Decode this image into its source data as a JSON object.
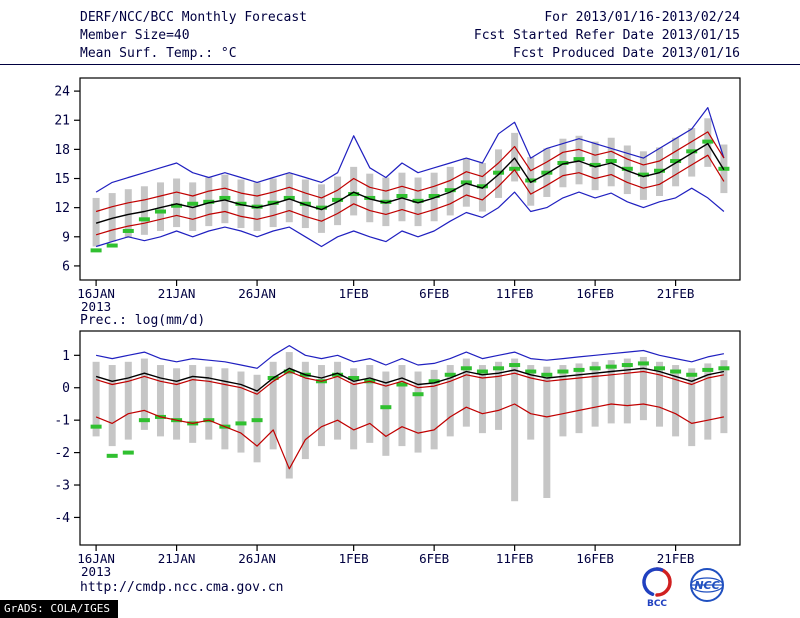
{
  "header": {
    "title": "DERF/NCC/BCC Monthly Forecast",
    "member_size": "Member Size=40",
    "temp_label": "Mean Surf. Temp.: °C",
    "for_range": "For 2013/01/16-2013/02/24",
    "refer_date": "Fcst Started Refer Date 2013/01/15",
    "produced_date": "Fcst Produced Date 2013/01/16"
  },
  "footer": {
    "url": "http://cmdp.ncc.cma.gov.cn",
    "grads_credit": "GrADS: COLA/IGES",
    "logo_bcc": "BCC",
    "logo_ncc": "NCC"
  },
  "colors": {
    "text": "#000040",
    "line_blue": "#2020c0",
    "line_red": "#c00000",
    "line_black": "#000000",
    "marker_green": "#30c030",
    "bar_gray": "#c6c6c6"
  },
  "chart_data": [
    {
      "type": "line",
      "title": "Mean Surf. Temp.: °C",
      "xlabel": "",
      "ylabel": "°C",
      "ylim": [
        4.55,
        25.35
      ],
      "yticks": [
        6,
        9,
        12,
        15,
        18,
        21,
        24
      ],
      "n_points": 40,
      "x_tick_indices": [
        0,
        5,
        10,
        16,
        21,
        26,
        31,
        36
      ],
      "x_tick_labels": [
        "16JAN",
        "21JAN",
        "26JAN",
        "1FEB",
        "6FEB",
        "11FEB",
        "16FEB",
        "21FEB"
      ],
      "x_year_label": "2013",
      "grid": false,
      "series": [
        {
          "name": "ensemble-max",
          "color": "#2020c0",
          "width": 1.2,
          "values": [
            13.6,
            14.6,
            15.1,
            15.6,
            16.1,
            16.6,
            15.6,
            15.1,
            15.6,
            15.1,
            14.6,
            15.1,
            15.6,
            15.1,
            14.6,
            15.6,
            19.4,
            16.1,
            15.1,
            16.6,
            15.6,
            16.1,
            16.6,
            17.1,
            16.6,
            19.6,
            20.8,
            17.1,
            18.1,
            18.6,
            19.1,
            18.6,
            18.1,
            17.6,
            17.1,
            18.1,
            19.1,
            20.1,
            22.3,
            17.1
          ]
        },
        {
          "name": "upper-quartile",
          "color": "#c00000",
          "width": 1.2,
          "values": [
            11.6,
            12.1,
            12.5,
            12.8,
            13.2,
            13.6,
            13.2,
            13.7,
            14.0,
            13.5,
            13.2,
            13.6,
            14.1,
            13.5,
            13.0,
            13.8,
            15.0,
            14.1,
            13.7,
            14.2,
            13.7,
            14.2,
            14.8,
            15.7,
            15.2,
            16.6,
            18.3,
            15.8,
            16.7,
            17.7,
            18.0,
            17.4,
            17.8,
            17.0,
            16.4,
            16.8,
            17.8,
            18.8,
            19.8,
            17.1
          ]
        },
        {
          "name": "ensemble-mean",
          "color": "#000000",
          "width": 1.4,
          "values": [
            10.4,
            10.9,
            11.3,
            11.6,
            12.0,
            12.4,
            12.0,
            12.5,
            12.8,
            12.3,
            12.0,
            12.4,
            12.9,
            12.3,
            11.8,
            12.6,
            13.6,
            12.9,
            12.5,
            13.0,
            12.5,
            13.0,
            13.6,
            14.5,
            14.0,
            15.4,
            17.1,
            14.6,
            15.5,
            16.5,
            16.8,
            16.2,
            16.6,
            15.8,
            15.2,
            15.6,
            16.6,
            17.6,
            18.6,
            15.9
          ]
        },
        {
          "name": "lower-quartile",
          "color": "#c00000",
          "width": 1.2,
          "values": [
            9.2,
            9.7,
            10.1,
            10.4,
            10.8,
            11.2,
            10.8,
            11.3,
            11.6,
            11.1,
            10.8,
            11.2,
            11.7,
            11.1,
            10.6,
            11.4,
            12.4,
            11.7,
            11.3,
            11.8,
            11.3,
            11.8,
            12.4,
            13.3,
            12.8,
            14.2,
            15.9,
            13.4,
            14.3,
            15.3,
            15.6,
            15.0,
            15.4,
            14.6,
            14.0,
            14.4,
            15.4,
            16.4,
            17.4,
            14.7
          ]
        },
        {
          "name": "ensemble-min",
          "color": "#2020c0",
          "width": 1.2,
          "values": [
            8.0,
            8.5,
            9.0,
            8.6,
            9.0,
            9.6,
            9.0,
            9.6,
            10.0,
            9.6,
            9.0,
            9.6,
            10.0,
            9.0,
            8.0,
            9.0,
            9.6,
            9.0,
            8.5,
            9.6,
            9.0,
            9.6,
            10.6,
            11.5,
            11.0,
            12.0,
            13.6,
            11.6,
            12.0,
            13.0,
            13.6,
            13.0,
            13.5,
            12.6,
            12.0,
            12.6,
            13.0,
            14.0,
            13.0,
            11.6
          ]
        }
      ],
      "markers": {
        "name": "observation",
        "color": "#30c030",
        "values": [
          7.6,
          8.1,
          9.6,
          10.8,
          11.6,
          12.2,
          12.4,
          12.6,
          13.0,
          12.4,
          12.1,
          12.5,
          13.0,
          12.4,
          12.0,
          12.8,
          13.4,
          13.0,
          12.6,
          13.2,
          12.7,
          13.2,
          13.8,
          14.6,
          14.2,
          15.6,
          16.0,
          14.8,
          15.6,
          16.6,
          17.0,
          16.4,
          16.8,
          16.0,
          15.4,
          15.8,
          16.8,
          17.8,
          18.8,
          16.0
        ]
      },
      "bars": {
        "name": "ensemble-spread",
        "color": "#c6c6c6",
        "low": [
          8.0,
          8.5,
          8.9,
          9.2,
          9.6,
          10.0,
          9.6,
          10.1,
          10.4,
          9.9,
          9.6,
          10.0,
          10.5,
          9.9,
          9.4,
          10.2,
          11.2,
          10.5,
          10.1,
          10.6,
          10.1,
          10.6,
          11.2,
          12.1,
          11.6,
          13.0,
          14.7,
          12.2,
          13.1,
          14.1,
          14.4,
          13.8,
          14.2,
          13.4,
          12.8,
          13.2,
          14.2,
          15.2,
          16.2,
          13.5
        ],
        "high": [
          13.0,
          13.5,
          13.9,
          14.2,
          14.6,
          15.0,
          14.6,
          15.1,
          15.4,
          14.9,
          14.6,
          15.0,
          15.5,
          14.9,
          14.4,
          15.2,
          16.2,
          15.5,
          15.1,
          15.6,
          15.1,
          15.6,
          16.2,
          17.1,
          16.6,
          18.0,
          19.7,
          17.2,
          18.1,
          19.1,
          19.4,
          18.8,
          19.2,
          18.4,
          17.8,
          18.2,
          19.2,
          20.2,
          21.2,
          18.5
        ]
      }
    },
    {
      "type": "line",
      "title": "Prec.: log(mm/d)",
      "xlabel": "",
      "ylabel": "log(mm/d)",
      "ylim": [
        -4.85,
        1.75
      ],
      "yticks": [
        1,
        0,
        -1,
        -2,
        -3,
        -4
      ],
      "n_points": 40,
      "x_tick_indices": [
        0,
        5,
        10,
        16,
        21,
        26,
        31,
        36
      ],
      "x_tick_labels": [
        "16JAN",
        "21JAN",
        "26JAN",
        "1FEB",
        "6FEB",
        "11FEB",
        "16FEB",
        "21FEB"
      ],
      "x_year_label": "2013",
      "grid": false,
      "series": [
        {
          "name": "ensemble-max",
          "color": "#2020c0",
          "width": 1.2,
          "values": [
            1.0,
            0.9,
            1.0,
            1.1,
            0.9,
            0.8,
            0.9,
            0.85,
            0.8,
            0.7,
            0.6,
            1.0,
            1.3,
            1.0,
            0.9,
            1.0,
            0.8,
            0.9,
            0.7,
            0.9,
            0.7,
            0.75,
            0.9,
            1.1,
            0.9,
            1.0,
            1.1,
            0.9,
            0.85,
            0.9,
            0.95,
            1.0,
            1.05,
            1.1,
            1.15,
            1.0,
            0.9,
            0.8,
            0.95,
            1.05
          ]
        },
        {
          "name": "ensemble-mean",
          "color": "#000000",
          "width": 1.4,
          "values": [
            0.35,
            0.2,
            0.3,
            0.45,
            0.3,
            0.2,
            0.35,
            0.3,
            0.2,
            0.1,
            -0.1,
            0.3,
            0.6,
            0.4,
            0.3,
            0.45,
            0.2,
            0.3,
            0.15,
            0.3,
            0.1,
            0.15,
            0.3,
            0.5,
            0.4,
            0.45,
            0.55,
            0.4,
            0.3,
            0.35,
            0.4,
            0.45,
            0.5,
            0.55,
            0.6,
            0.5,
            0.35,
            0.2,
            0.4,
            0.5
          ]
        },
        {
          "name": "upper-quartile",
          "color": "#c00000",
          "width": 1.2,
          "values": [
            0.25,
            0.1,
            0.2,
            0.35,
            0.2,
            0.1,
            0.25,
            0.2,
            0.1,
            0.0,
            -0.2,
            0.2,
            0.5,
            0.3,
            0.2,
            0.35,
            0.1,
            0.2,
            0.05,
            0.2,
            0.0,
            0.05,
            0.2,
            0.4,
            0.3,
            0.35,
            0.45,
            0.3,
            0.2,
            0.25,
            0.3,
            0.35,
            0.4,
            0.45,
            0.5,
            0.4,
            0.25,
            0.1,
            0.3,
            0.4
          ]
        },
        {
          "name": "lower-quartile",
          "color": "#c00000",
          "width": 1.2,
          "values": [
            -0.9,
            -1.1,
            -0.8,
            -0.7,
            -0.9,
            -1.0,
            -1.1,
            -1.0,
            -1.2,
            -1.4,
            -1.8,
            -1.3,
            -2.5,
            -1.6,
            -1.2,
            -1.0,
            -1.3,
            -1.1,
            -1.5,
            -1.2,
            -1.4,
            -1.3,
            -0.9,
            -0.6,
            -0.8,
            -0.7,
            -0.5,
            -0.8,
            -0.9,
            -0.8,
            -0.7,
            -0.6,
            -0.5,
            -0.55,
            -0.5,
            -0.6,
            -0.8,
            -1.1,
            -1.0,
            -0.9
          ]
        }
      ],
      "markers": {
        "name": "observation",
        "color": "#30c030",
        "values": [
          -1.2,
          -2.1,
          -2.0,
          -1.0,
          -0.9,
          -1.0,
          -1.1,
          -1.0,
          -1.2,
          -1.1,
          -1.0,
          0.3,
          0.5,
          0.4,
          0.2,
          0.4,
          0.3,
          0.2,
          -0.6,
          0.1,
          -0.2,
          0.2,
          0.4,
          0.6,
          0.5,
          0.6,
          0.7,
          0.5,
          0.4,
          0.5,
          0.55,
          0.6,
          0.65,
          0.7,
          0.75,
          0.6,
          0.5,
          0.4,
          0.55,
          0.6
        ]
      },
      "bars": {
        "name": "ensemble-spread",
        "color": "#c6c6c6",
        "low": [
          -1.5,
          -1.8,
          -1.6,
          -1.3,
          -1.5,
          -1.6,
          -1.7,
          -1.6,
          -1.9,
          -2.0,
          -2.3,
          -1.9,
          -2.8,
          -2.2,
          -1.8,
          -1.6,
          -1.9,
          -1.7,
          -2.1,
          -1.8,
          -2.0,
          -1.9,
          -1.5,
          -1.2,
          -1.4,
          -1.3,
          -3.5,
          -1.6,
          -3.4,
          -1.5,
          -1.4,
          -1.2,
          -1.1,
          -1.1,
          -1.0,
          -1.2,
          -1.5,
          -1.8,
          -1.6,
          -1.4
        ],
        "high": [
          0.8,
          0.7,
          0.8,
          0.9,
          0.7,
          0.6,
          0.7,
          0.65,
          0.6,
          0.5,
          0.4,
          0.8,
          1.1,
          0.8,
          0.7,
          0.8,
          0.6,
          0.7,
          0.5,
          0.7,
          0.5,
          0.55,
          0.7,
          0.9,
          0.7,
          0.8,
          0.9,
          0.7,
          0.65,
          0.7,
          0.75,
          0.8,
          0.85,
          0.9,
          0.95,
          0.8,
          0.7,
          0.6,
          0.75,
          0.85
        ]
      }
    }
  ]
}
